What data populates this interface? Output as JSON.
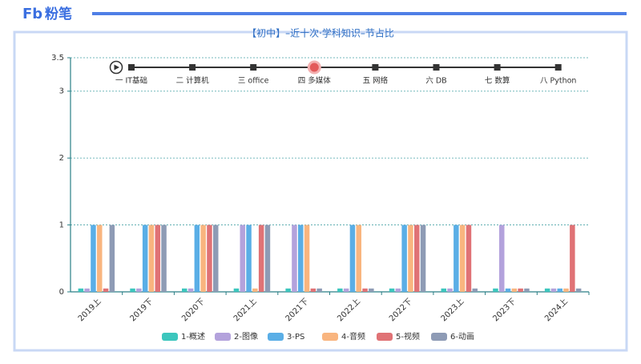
{
  "header": {
    "logo_mark": "Fb",
    "logo_text": "粉笔"
  },
  "timeline": {
    "items": [
      "一 IT基础",
      "二 计算机",
      "三 office",
      "四 多媒体",
      "五 网络",
      "六 DB",
      "七 数算",
      "八 Python"
    ],
    "active": 3
  },
  "chart_data": {
    "type": "bar",
    "title": "【初中】–近十次·学科知识–节占比",
    "categories": [
      "2019上",
      "2019下",
      "2020下",
      "2021上",
      "2021下",
      "2022上",
      "2022下",
      "2023上",
      "2023下",
      "2024上"
    ],
    "series": [
      {
        "name": "1-概述",
        "color": "#3cc6bd",
        "values": [
          0.05,
          0.05,
          0.05,
          0.05,
          0.05,
          0.05,
          0.05,
          0.05,
          0.05,
          0.05
        ]
      },
      {
        "name": "2-图像",
        "color": "#b3a2dc",
        "values": [
          0.05,
          0.05,
          0.05,
          1,
          1,
          0.05,
          0.05,
          0.05,
          1,
          0.05
        ]
      },
      {
        "name": "3-PS",
        "color": "#5aaee6",
        "values": [
          1,
          1,
          1,
          1,
          1,
          1,
          1,
          1,
          0.05,
          0.05
        ]
      },
      {
        "name": "4-音频",
        "color": "#f9b57f",
        "values": [
          1,
          1,
          1,
          0.05,
          1,
          1,
          1,
          1,
          0.05,
          0.05
        ]
      },
      {
        "name": "5-视频",
        "color": "#e07275",
        "values": [
          0.05,
          1,
          1,
          1,
          0.05,
          0.05,
          1,
          1,
          0.05,
          1
        ]
      },
      {
        "name": "6-动画",
        "color": "#8e9bb5",
        "values": [
          1,
          1,
          1,
          1,
          0.05,
          0.05,
          1,
          0.05,
          0.05,
          0.05
        ]
      }
    ],
    "ylim": [
      0,
      3.5
    ],
    "yticks": [
      0,
      1,
      2,
      3,
      3.5
    ],
    "grid": true
  }
}
